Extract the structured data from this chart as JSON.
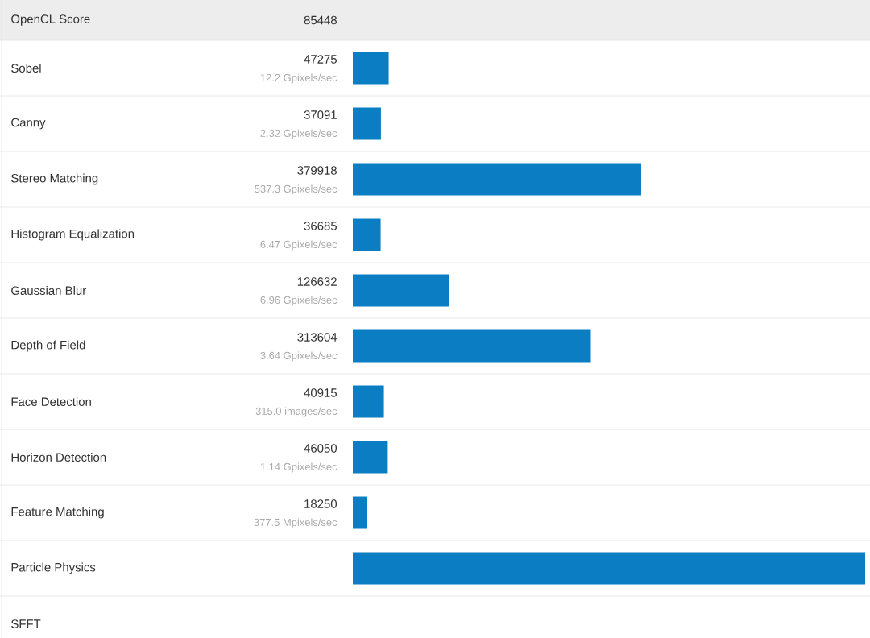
{
  "chart_data": {
    "type": "bar",
    "orientation": "horizontal",
    "title": "OpenCL Score",
    "subtitle": "85448",
    "categories": [
      "Sobel",
      "Canny",
      "Stereo Matching",
      "Histogram Equalization",
      "Gaussian Blur",
      "Depth of Field",
      "Face Detection",
      "Horizon Detection",
      "Feature Matching",
      "Particle Physics",
      "SFFT"
    ],
    "values": [
      47275,
      37091,
      379918,
      36685,
      126632,
      313604,
      40915,
      46050,
      18250,
      675000,
      null
    ],
    "value_labels": [
      "47275",
      "37091",
      "379918",
      "36685",
      "126632",
      "313604",
      "40915",
      "46050",
      "18250",
      null,
      null
    ],
    "color": "#0b7dc2",
    "annotations": [
      "12.2 Gpixels/sec",
      "2.32 Gpixels/sec",
      "537.3 Gpixels/sec",
      "6.47 Gpixels/sec",
      "6.96 Gpixels/sec",
      "3.64 Gpixels/sec",
      "315.0 images/sec",
      "1.14 Gpixels/sec",
      "377.5 Mpixels/sec"
    ]
  }
}
